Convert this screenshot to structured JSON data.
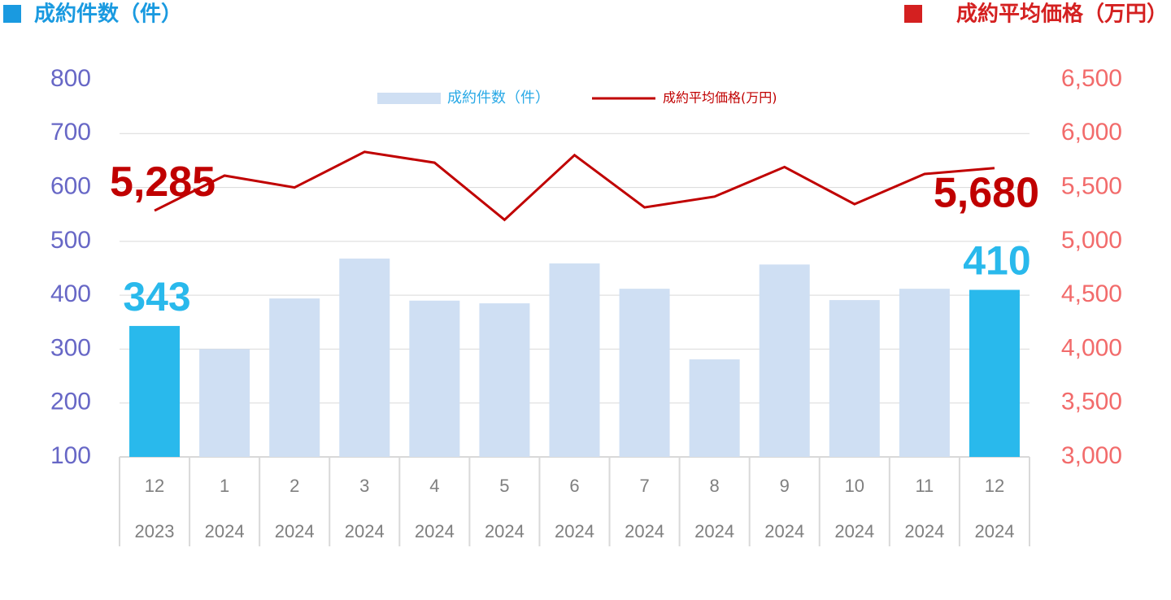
{
  "chart_data": {
    "type": "bar-line",
    "y_title": "成約件数（件）",
    "y2_title": "成約平均価格（万円）",
    "categories": [
      "12",
      "1",
      "2",
      "3",
      "4",
      "5",
      "6",
      "7",
      "8",
      "9",
      "10",
      "11",
      "12"
    ],
    "years": [
      "2023",
      "2024",
      "2024",
      "2024",
      "2024",
      "2024",
      "2024",
      "2024",
      "2024",
      "2024",
      "2024",
      "2024",
      "2024"
    ],
    "series": [
      {
        "name": "成約件数（件）",
        "type": "bar",
        "color": "#cfdff3",
        "highlight_color": "#29b9ec",
        "values": [
          343,
          300,
          394,
          468,
          390,
          385,
          459,
          412,
          281,
          457,
          391,
          412,
          410
        ],
        "value_labels": [
          "343",
          null,
          null,
          null,
          null,
          null,
          null,
          null,
          null,
          null,
          null,
          null,
          "410"
        ]
      },
      {
        "name": "成約平均価格(万円)",
        "type": "line",
        "axis": "y2",
        "color": "#c00000",
        "values": [
          5285,
          5610,
          5500,
          5830,
          5730,
          5200,
          5800,
          5315,
          5415,
          5690,
          5345,
          5625,
          5680
        ],
        "value_labels": [
          "5,285",
          null,
          null,
          null,
          null,
          null,
          null,
          null,
          null,
          null,
          null,
          null,
          "5,680"
        ]
      }
    ],
    "ylim": [
      100,
      800
    ],
    "yticks": [
      100,
      200,
      300,
      400,
      500,
      600,
      700,
      800
    ],
    "y2lim": [
      3000,
      6500
    ],
    "y2ticks": [
      {
        "value": 3000,
        "label": "3,000"
      },
      {
        "value": 3500,
        "label": "3,500"
      },
      {
        "value": 4000,
        "label": "4,000"
      },
      {
        "value": 4500,
        "label": "4,500"
      },
      {
        "value": 5000,
        "label": "5,000"
      },
      {
        "value": 5500,
        "label": "5,500"
      },
      {
        "value": 6000,
        "label": "6,000"
      },
      {
        "value": 6500,
        "label": "6,500"
      }
    ],
    "grid": true
  }
}
